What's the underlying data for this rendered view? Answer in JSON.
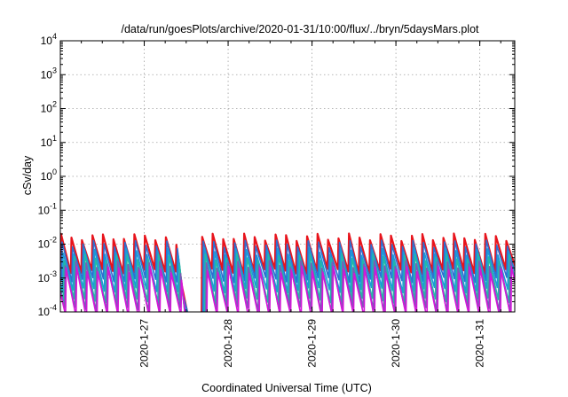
{
  "chart_data": {
    "type": "line",
    "title": "/data/run/goesPlots/archive/2020-01-31/10:00/flux/../bryn/5daysMars.plot",
    "xlabel": "Coordinated Universal Time (UTC)",
    "ylabel": "cSv/day",
    "xscale": "time",
    "yscale": "log",
    "xlim": [
      "2020-01-26 00:00",
      "2020-01-31 10:00"
    ],
    "ylim": [
      0.0001,
      10000
    ],
    "grid": true,
    "x_tick_labels": [
      "2020-1-27",
      "2020-1-28",
      "2020-1-29",
      "2020-1-30",
      "2020-1-31"
    ],
    "x_ticks": [
      "2020-01-27 00:00",
      "2020-01-28 00:00",
      "2020-01-29 00:00",
      "2020-01-30 00:00",
      "2020-01-31 00:00"
    ],
    "y_ticks": [
      {
        "base": "10",
        "exp": "-4",
        "value": 0.0001
      },
      {
        "base": "10",
        "exp": "-3",
        "value": 0.001
      },
      {
        "base": "10",
        "exp": "-2",
        "value": 0.01
      },
      {
        "base": "10",
        "exp": "-1",
        "value": 0.1
      },
      {
        "base": "10",
        "exp": "0",
        "value": 1
      },
      {
        "base": "10",
        "exp": "1",
        "value": 10
      },
      {
        "base": "10",
        "exp": "2",
        "value": 100
      },
      {
        "base": "10",
        "exp": "3",
        "value": 1000
      },
      {
        "base": "10",
        "exp": "4",
        "value": 10000
      }
    ],
    "gap": {
      "start": "2020-01-27 09:00",
      "end": "2020-01-27 16:00"
    },
    "cycle_hours": 3,
    "series": [
      {
        "color": "#e8141c",
        "peak": 0.0165,
        "trough": 0.0016,
        "phase_hours": 0.0
      },
      {
        "color": "#2f6fd0",
        "peak": 0.0105,
        "trough": 0.0009,
        "phase_hours": 0.3
      },
      {
        "color": "#1a9ad8",
        "peak": 0.0062,
        "trough": 0.00045,
        "phase_hours": 0.6
      },
      {
        "color": "#23b8a8",
        "peak": 0.0042,
        "trough": 0.00022,
        "phase_hours": 0.9
      },
      {
        "color": "#7a5ab8",
        "peak": 0.0026,
        "trough": 0.00012,
        "phase_hours": 1.2
      },
      {
        "color": "#d416d8",
        "peak": 0.0018,
        "trough": 7e-05,
        "phase_hours": 1.5
      }
    ]
  }
}
